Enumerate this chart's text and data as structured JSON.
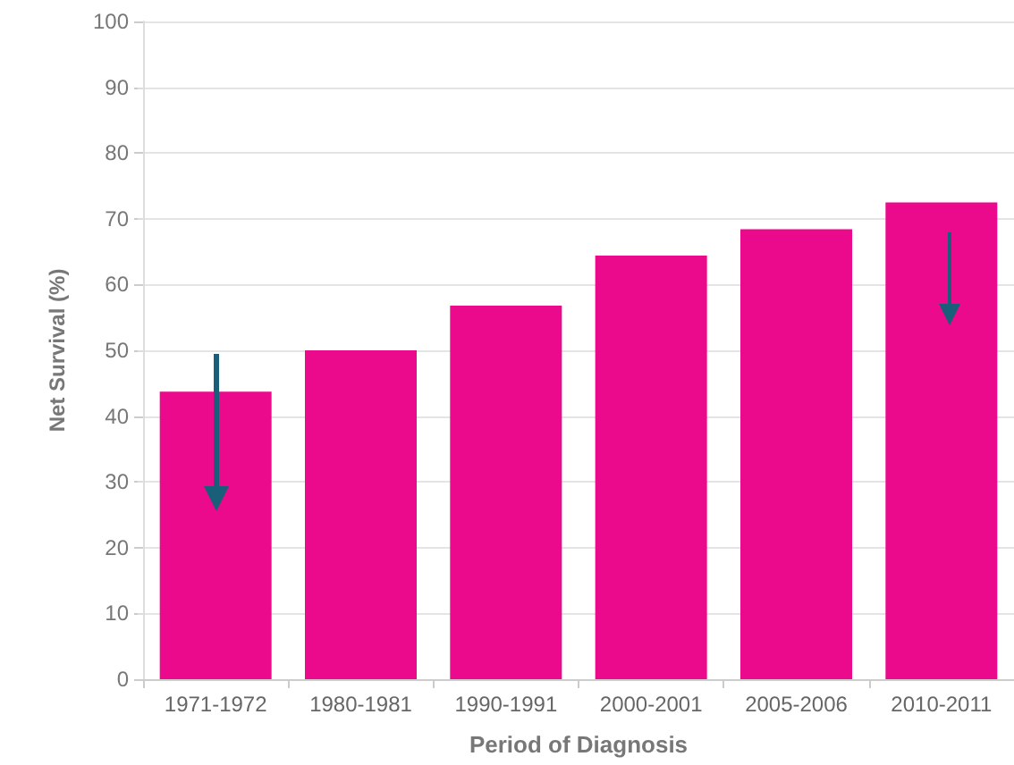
{
  "chart_data": {
    "type": "bar",
    "xlabel": "Period of Diagnosis",
    "ylabel": "Net Survival (%)",
    "categories": [
      "1971-1972",
      "1980-1981",
      "1990-1991",
      "2000-2001",
      "2005-2006",
      "2010-2011"
    ],
    "values": [
      43.7,
      50.0,
      56.8,
      64.4,
      68.4,
      72.5
    ],
    "color": "#eb0a8c",
    "ylim": [
      0,
      100
    ],
    "yticks": [
      0,
      10,
      20,
      30,
      40,
      50,
      60,
      70,
      80,
      90,
      100
    ],
    "grid": "y"
  }
}
